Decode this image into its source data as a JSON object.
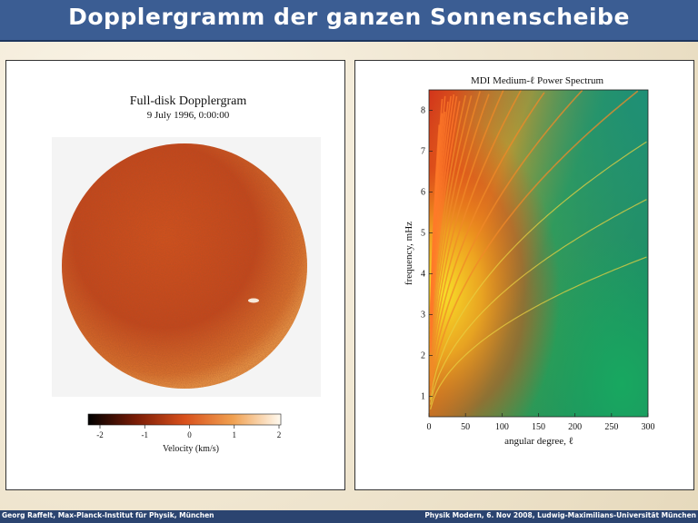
{
  "slide": {
    "title": "Dopplergramm der ganzen Sonnenscheibe",
    "footer_left": "Georg Raffelt, Max-Planck-Institut für Physik, München",
    "footer_right": "Physik Modern, 6. Nov 2008, Ludwig-Maximilians-Universität München"
  },
  "dopplergram": {
    "title": "Full-disk Dopplergram",
    "date": "9 July 1996, 0:00:00",
    "colorbar_ticks": [
      "-2",
      "-1",
      "0",
      "1",
      "2"
    ],
    "colorbar_label": "Velocity (km/s)"
  },
  "chart_data": {
    "type": "heatmap",
    "title": "MDI Medium-ℓ Power Spectrum",
    "xlabel": "angular degree, ℓ",
    "ylabel": "frequency, mHz",
    "xlim": [
      0,
      300
    ],
    "ylim": [
      0.5,
      8.5
    ],
    "x_ticks": [
      0,
      50,
      100,
      150,
      200,
      250,
      300
    ],
    "y_ticks": [
      1,
      2,
      3,
      4,
      5,
      6,
      7,
      8
    ]
  }
}
